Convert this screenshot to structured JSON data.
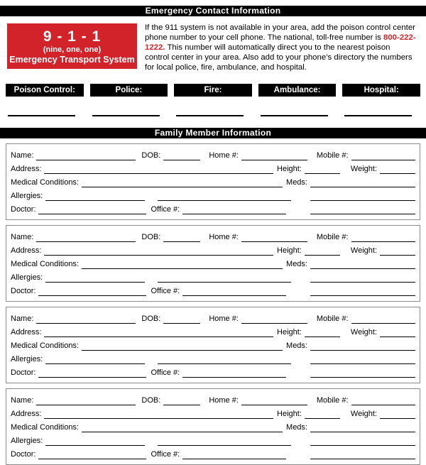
{
  "page": {
    "title_bar": "Emergency Contact Information",
    "family_bar": "Family Member Information"
  },
  "colors": {
    "accent_red": "#d2232a",
    "bar_black": "#000000",
    "block_border_gray": "#8c8c8c"
  },
  "emergency": {
    "box_911": {
      "number": "9 - 1 - 1",
      "words": "(nine, one, one)",
      "subtitle": "Emergency Transport System"
    },
    "paragraph": {
      "seg1": "If the 911 system is not available in your area, add the poison control center phone number to your cell phone. The national, toll-free number is ",
      "phone": "800-222-1222.",
      "seg2": " This number will automatically direct you to the nearest poison control center in your area. Also add to your phone’s directory the numbers for local police, fire, ambulance, and hospital."
    },
    "contacts": [
      {
        "label": "Poison Control:",
        "value": ""
      },
      {
        "label": "Police:",
        "value": ""
      },
      {
        "label": "Fire:",
        "value": ""
      },
      {
        "label": "Ambulance:",
        "value": ""
      },
      {
        "label": "Hospital:",
        "value": ""
      }
    ]
  },
  "family": {
    "count": 4,
    "labels": {
      "name": "Name:",
      "dob": "DOB:",
      "home": "Home #:",
      "mobile": "Mobile #:",
      "address": "Address:",
      "height": "Height:",
      "weight": "Weight:",
      "medical": "Medical Conditions:",
      "meds": "Meds:",
      "allergies": "Allergies:",
      "doctor": "Doctor:",
      "office": "Office #:"
    },
    "values": {
      "name": "",
      "dob": "",
      "home": "",
      "mobile": "",
      "address": "",
      "height": "",
      "weight": "",
      "medical": "",
      "meds": "",
      "allergies": "",
      "doctor": "",
      "office": ""
    }
  }
}
